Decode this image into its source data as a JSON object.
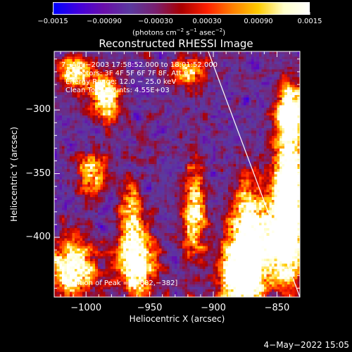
{
  "chart_data": {
    "type": "heatmap",
    "title": "Reconstructed RHESSI Image",
    "xlabel": "Heliocentric X (arcsec)",
    "ylabel": "Heliocentric Y (arcsec)",
    "xlim": [
      -1025,
      -832
    ],
    "ylim": [
      -447,
      -254
    ],
    "x_ticks": [
      "−1000",
      "−950",
      "−900",
      "−850"
    ],
    "x_tick_values": [
      -1000,
      -950,
      -900,
      -850
    ],
    "y_ticks": [
      "−300",
      "−350",
      "−400"
    ],
    "y_tick_values": [
      -300,
      -350,
      -400
    ],
    "colorbar": {
      "min": -0.0015,
      "max": 0.0015,
      "ticks": [
        "−0.0015",
        "−0.00090",
        "−0.00030",
        "0.00030",
        "0.00090",
        "0.0015"
      ],
      "tick_values": [
        -0.0015,
        -0.0009,
        -0.0003,
        0.0003,
        0.0009,
        0.0015
      ],
      "label_main": "(photons cm",
      "label_exp1": "−2",
      "label_mid": " s",
      "label_exp2": "−1",
      "label_end": " asec",
      "label_exp3": "−2",
      "label_close": ")",
      "colormap": [
        "#0000ff",
        "#4400dd",
        "#6a10aa",
        "#5a3aa0",
        "#7a2070",
        "#aa0000",
        "#ff2000",
        "#ff8000",
        "#ffcc00",
        "#ffffcc",
        "#ffffff"
      ]
    },
    "annotations": [
      "7−Aug−2003 17:58:52.000 to 18:01:52.000",
      "Detectors: 3F 4F 5F 6F 7F 8F, Att 0",
      "Energy Range: 12.0 − 25.0 keV",
      "Clean    Total counts: 4.55E+03"
    ],
    "peak_label": "Position of Peak = [−882,−382]",
    "peak_position": [
      -882,
      -382
    ],
    "limb_line": [
      [
        -904,
        -254
      ],
      [
        -832,
        -447
      ]
    ],
    "hot_spots": [
      {
        "x": -872,
        "y": -405,
        "level": 1.0,
        "sx": 10,
        "sy": 30
      },
      {
        "x": -840,
        "y": -350,
        "level": 1.0,
        "sx": 8,
        "sy": 40
      },
      {
        "x": -845,
        "y": -400,
        "level": 0.9,
        "sx": 10,
        "sy": 25
      },
      {
        "x": -960,
        "y": -420,
        "level": 0.9,
        "sx": 10,
        "sy": 18
      },
      {
        "x": -1010,
        "y": -425,
        "level": 0.85,
        "sx": 12,
        "sy": 15
      },
      {
        "x": -985,
        "y": -290,
        "level": 0.85,
        "sx": 8,
        "sy": 12
      },
      {
        "x": -995,
        "y": -350,
        "level": 0.6,
        "sx": 8,
        "sy": 12
      },
      {
        "x": -915,
        "y": -380,
        "level": 0.7,
        "sx": 6,
        "sy": 25
      },
      {
        "x": -965,
        "y": -380,
        "level": 0.5,
        "sx": 6,
        "sy": 20
      },
      {
        "x": -1008,
        "y": -270,
        "level": 0.7,
        "sx": 10,
        "sy": 8
      },
      {
        "x": -920,
        "y": -270,
        "level": 0.6,
        "sx": 10,
        "sy": 8
      },
      {
        "x": -840,
        "y": -300,
        "level": 0.7,
        "sx": 6,
        "sy": 10
      },
      {
        "x": -880,
        "y": -430,
        "level": 0.9,
        "sx": 10,
        "sy": 15
      }
    ]
  },
  "footer": {
    "datestamp": "4−May−2022 15:05"
  }
}
